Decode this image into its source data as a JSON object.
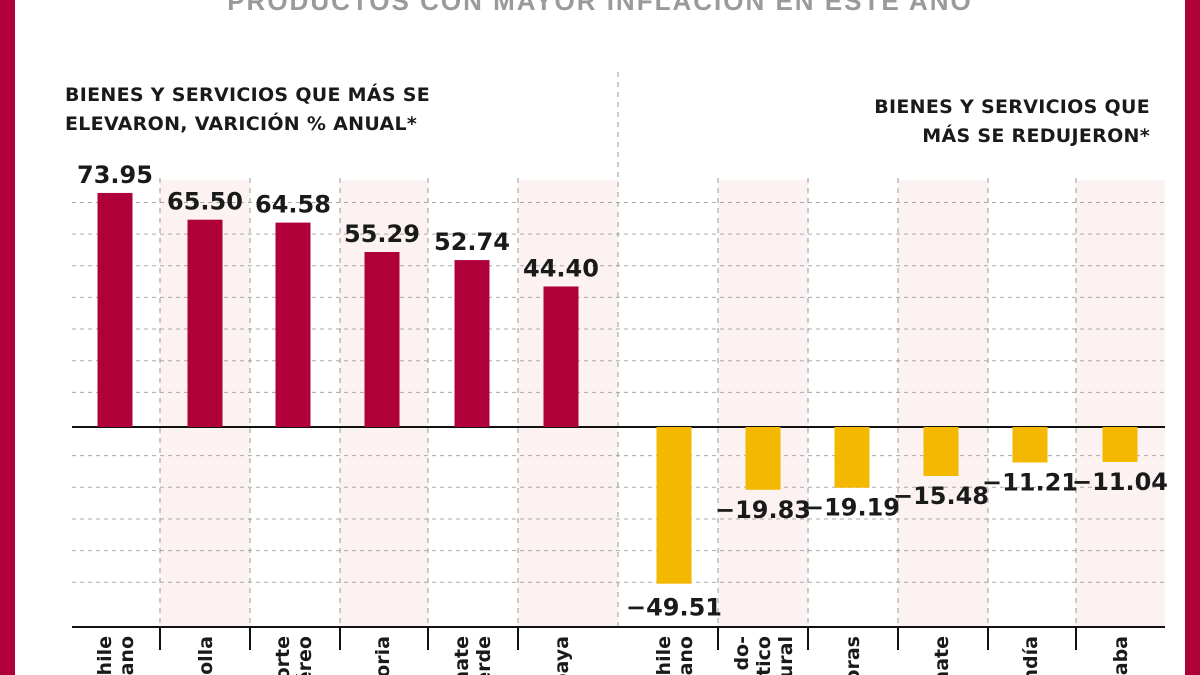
{
  "title": "PRODUCTOS CON MAYOR INFLACIÓN EN ESTE AÑO",
  "left_header": [
    "BIENES Y SERVICIOS QUE MÁS SE",
    "ELEVARON, VARICIÓN % ANUAL*"
  ],
  "right_header": [
    "BIENES Y SERVICIOS QUE",
    "MÁS SE REDUJERON*"
  ],
  "colors": {
    "increase": "#b0003a",
    "decrease": "#f5b800",
    "border": "#b0003a",
    "shade": "#fcf2f2"
  },
  "chart_data": {
    "type": "bar",
    "categories": [
      [
        "Chile",
        "lano"
      ],
      [
        "bolla"
      ],
      [
        "porte",
        "aéreo"
      ],
      [
        "noria"
      ],
      [
        "nate",
        "verde"
      ],
      [
        "paya"
      ],
      [
        "Chile",
        "rano"
      ],
      [
        "do-",
        "stico",
        "tural"
      ],
      [
        "oras"
      ],
      [
        "nate"
      ],
      [
        "ndía"
      ],
      [
        "yaba"
      ]
    ],
    "values": [
      73.95,
      65.5,
      64.58,
      55.29,
      52.74,
      44.4,
      -49.51,
      -19.83,
      -19.19,
      -15.48,
      -11.21,
      -11.04
    ],
    "value_labels": [
      "73.95",
      "65.50",
      "64.58",
      "55.29",
      "52.74",
      "44.40",
      "-49.51",
      "-19.83",
      "-19.19",
      "-15.48",
      "-11.21",
      "-11.04"
    ],
    "ylabel": "",
    "xlabel": "",
    "ylim": [
      -60,
      80
    ],
    "grid": true
  }
}
